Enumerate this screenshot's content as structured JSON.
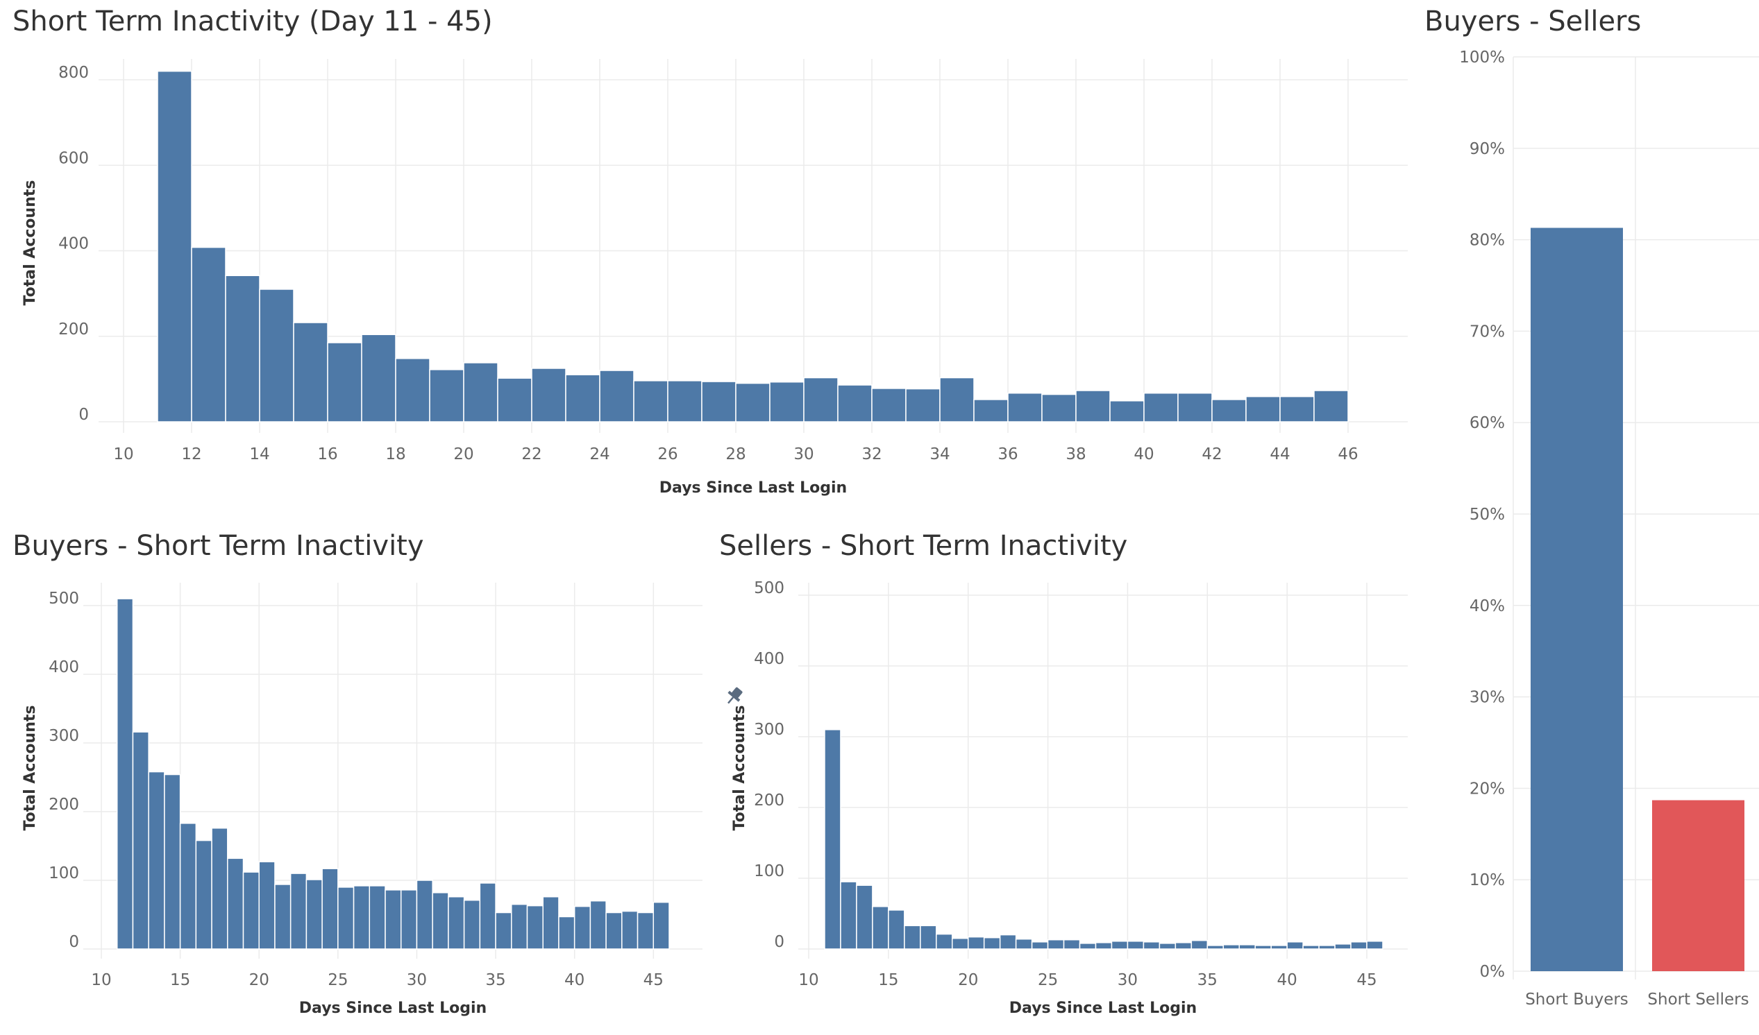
{
  "colors": {
    "blue": "#4e79a7",
    "red": "#e15759",
    "grid": "#ebebeb",
    "tick": "#666666"
  },
  "icons": {
    "pin": "pin-icon"
  },
  "chart_data": [
    {
      "id": "main",
      "type": "bar",
      "title": "Short Term Inactivity (Day 11 - 45)",
      "xlabel": "Days Since Last Login",
      "ylabel": "Total Accounts",
      "xlim": [
        10,
        46
      ],
      "ylim": [
        0,
        800
      ],
      "x_ticks": [
        10,
        12,
        14,
        16,
        18,
        20,
        22,
        24,
        26,
        28,
        30,
        32,
        34,
        36,
        38,
        40,
        42,
        44,
        46
      ],
      "y_ticks": [
        0,
        200,
        400,
        600,
        800
      ],
      "grid": true,
      "x": [
        11,
        12,
        13,
        14,
        15,
        16,
        17,
        18,
        19,
        20,
        21,
        22,
        23,
        24,
        25,
        26,
        27,
        28,
        29,
        30,
        31,
        32,
        33,
        34,
        35,
        36,
        37,
        38,
        39,
        40,
        41,
        42,
        43,
        44,
        45
      ],
      "values": [
        820,
        408,
        342,
        310,
        232,
        185,
        204,
        148,
        122,
        138,
        102,
        125,
        110,
        120,
        96,
        96,
        94,
        90,
        93,
        103,
        86,
        78,
        77,
        103,
        52,
        67,
        64,
        73,
        49,
        67,
        67,
        52,
        59,
        59,
        73
      ]
    },
    {
      "id": "buyers",
      "type": "bar",
      "title": "Buyers - Short Term Inactivity",
      "xlabel": "Days Since Last Login",
      "ylabel": "Total Accounts",
      "xlim": [
        10,
        46
      ],
      "ylim": [
        0,
        500
      ],
      "x_ticks": [
        10,
        15,
        20,
        25,
        30,
        35,
        40,
        45
      ],
      "y_ticks": [
        0,
        100,
        200,
        300,
        400,
        500
      ],
      "grid": true,
      "x": [
        11,
        12,
        13,
        14,
        15,
        16,
        17,
        18,
        19,
        20,
        21,
        22,
        23,
        24,
        25,
        26,
        27,
        28,
        29,
        30,
        31,
        32,
        33,
        34,
        35,
        36,
        37,
        38,
        39,
        40,
        41,
        42,
        43,
        44,
        45
      ],
      "values": [
        510,
        316,
        258,
        254,
        183,
        158,
        176,
        132,
        112,
        127,
        94,
        110,
        101,
        117,
        90,
        92,
        92,
        86,
        86,
        100,
        82,
        76,
        71,
        96,
        53,
        65,
        63,
        76,
        47,
        62,
        70,
        53,
        55,
        53,
        68
      ]
    },
    {
      "id": "sellers",
      "type": "bar",
      "title": "Sellers - Short Term Inactivity",
      "xlabel": "Days Since Last Login",
      "ylabel": "Total Accounts",
      "xlim": [
        10,
        46
      ],
      "ylim": [
        0,
        500
      ],
      "x_ticks": [
        10,
        15,
        20,
        25,
        30,
        35,
        40,
        45
      ],
      "y_ticks": [
        0,
        100,
        200,
        300,
        400,
        500
      ],
      "grid": true,
      "x": [
        11,
        12,
        13,
        14,
        15,
        16,
        17,
        18,
        19,
        20,
        21,
        22,
        23,
        24,
        25,
        26,
        27,
        28,
        29,
        30,
        31,
        32,
        33,
        34,
        35,
        36,
        37,
        38,
        39,
        40,
        41,
        42,
        43,
        44,
        45
      ],
      "values": [
        310,
        95,
        90,
        60,
        55,
        33,
        33,
        21,
        15,
        17,
        16,
        20,
        14,
        10,
        13,
        13,
        8,
        9,
        11,
        11,
        10,
        8,
        9,
        12,
        5,
        6,
        6,
        5,
        5,
        10,
        5,
        5,
        7,
        10,
        11
      ]
    },
    {
      "id": "share",
      "type": "bar",
      "title": "Buyers - Sellers",
      "categories": [
        "Short Buyers",
        "Short Sellers"
      ],
      "values": [
        81.3,
        18.7
      ],
      "unit": "%",
      "ylim": [
        0,
        100
      ],
      "y_ticks": [
        0,
        10,
        20,
        30,
        40,
        50,
        60,
        70,
        80,
        90,
        100
      ],
      "grid": true
    }
  ]
}
